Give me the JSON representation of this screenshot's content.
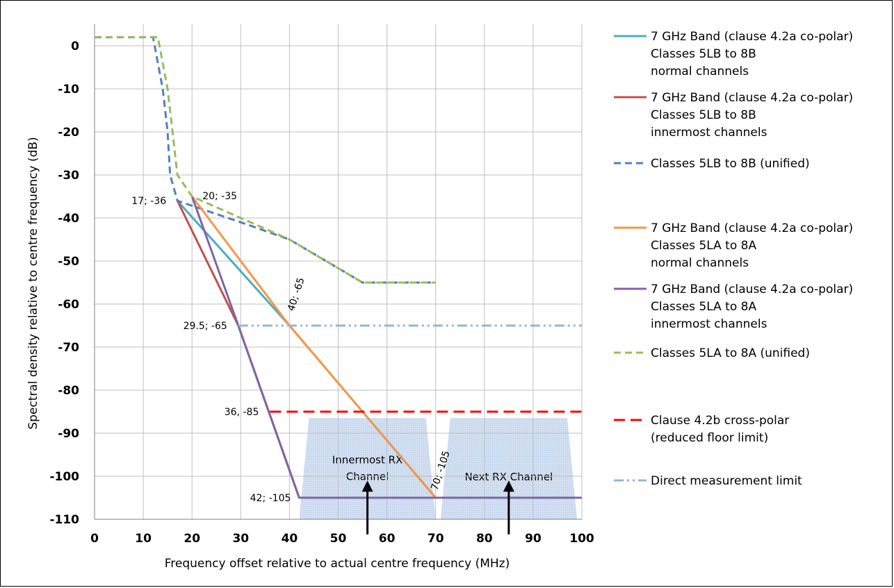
{
  "chart_data": {
    "type": "line",
    "xlabel": "Frequency offset relative to actual centre frequency (MHz)",
    "ylabel": "Spectral density relative to centre frequency (dB)",
    "xlim": [
      0,
      100
    ],
    "ylim": [
      -110,
      5
    ],
    "xticks": [
      0,
      10,
      20,
      30,
      40,
      50,
      60,
      70,
      80,
      90,
      100
    ],
    "yticks": [
      0,
      -10,
      -20,
      -30,
      -40,
      -50,
      -60,
      -70,
      -80,
      -90,
      -100,
      -110
    ],
    "grid": true,
    "legend_position": "right",
    "series": [
      {
        "name": "7 GHz Band (clause 4.2a co-polar) Classes 5LB to 8B normal channels",
        "legend_lines": [
          "7 GHz Band (clause 4.2a co-polar)",
          "Classes 5LB to 8B",
          "normal channels"
        ],
        "color": "#4BACC6",
        "style": "solid",
        "points": [
          [
            17,
            -36
          ],
          [
            40,
            -65
          ],
          [
            70,
            -105
          ]
        ]
      },
      {
        "name": "7 GHz Band (clause 4.2a co-polar) Classes 5LB to 8B innermost channels",
        "legend_lines": [
          "7 GHz Band (clause 4.2a co-polar)",
          "Classes 5LB to 8B",
          "innermost channels"
        ],
        "color": "#C0504D",
        "style": "solid",
        "points": [
          [
            17,
            -36
          ],
          [
            29.5,
            -65
          ],
          [
            42,
            -105
          ]
        ]
      },
      {
        "name": "Classes 5LB to 8B (unified)",
        "legend_lines": [
          "Classes 5LB to 8B (unified)"
        ],
        "color": "#4F81BD",
        "style": "dash",
        "points": [
          [
            0,
            2
          ],
          [
            12,
            2
          ],
          [
            14,
            -10
          ],
          [
            15,
            -20
          ],
          [
            15.5,
            -30
          ],
          [
            17,
            -36
          ],
          [
            30,
            -41
          ],
          [
            40,
            -45
          ],
          [
            55,
            -55
          ],
          [
            70,
            -55
          ]
        ]
      },
      {
        "name": "7 GHz Band (clause 4.2a co-polar) Classes 5LA to 8A normal channels",
        "legend_lines": [
          "7 GHz Band (clause 4.2a co-polar)",
          "Classes 5LA to 8A",
          "normal channels"
        ],
        "color": "#F79646",
        "style": "solid",
        "points": [
          [
            20,
            -35
          ],
          [
            40,
            -65
          ],
          [
            70,
            -105
          ]
        ]
      },
      {
        "name": "7 GHz Band (clause 4.2a co-polar) Classes 5LA to 8A innermost channels",
        "legend_lines": [
          "7 GHz Band (clause 4.2a co-polar)",
          "Classes 5LA to 8A",
          "innermost channels"
        ],
        "color": "#8064A2",
        "style": "solid",
        "points": [
          [
            20,
            -35
          ],
          [
            29.5,
            -65
          ],
          [
            42,
            -105
          ],
          [
            100,
            -105
          ]
        ]
      },
      {
        "name": "Classes 5LA to 8A (unified)",
        "legend_lines": [
          "Classes 5LA to 8A (unified)"
        ],
        "color": "#9BBB59",
        "style": "dash",
        "points": [
          [
            0,
            2
          ],
          [
            13,
            2
          ],
          [
            15,
            -10
          ],
          [
            16,
            -20
          ],
          [
            17,
            -30
          ],
          [
            20,
            -35
          ],
          [
            30,
            -40
          ],
          [
            40,
            -45
          ],
          [
            55,
            -55
          ],
          [
            70,
            -55
          ]
        ]
      },
      {
        "name": "Clause 4.2b cross-polar (reduced floor limit)",
        "legend_lines": [
          "Clause 4.2b cross-polar",
          "(reduced floor limit)"
        ],
        "color": "#FF0000",
        "style": "longdash",
        "points": [
          [
            36,
            -85
          ],
          [
            100,
            -85
          ]
        ]
      },
      {
        "name": "Direct measurement limit",
        "legend_lines": [
          "Direct measurement limit"
        ],
        "color": "#95B3D7",
        "style": "dashdotdot",
        "points": [
          [
            29.5,
            -65
          ],
          [
            100,
            -65
          ]
        ]
      }
    ],
    "point_labels": [
      {
        "text": "17; -36",
        "x": 17,
        "y": -36
      },
      {
        "text": "20; -35",
        "x": 20,
        "y": -35
      },
      {
        "text": "40; -65",
        "x": 40,
        "y": -65
      },
      {
        "text": "29.5; -65",
        "x": 29.5,
        "y": -65
      },
      {
        "text": "36, -85",
        "x": 36,
        "y": -85
      },
      {
        "text": "42; -105",
        "x": 42,
        "y": -105
      },
      {
        "text": "70; -105",
        "x": 70,
        "y": -105
      }
    ],
    "channel_bands": [
      {
        "label_lines": [
          "Innermost RX",
          "Channel"
        ],
        "x_bottom": [
          42,
          70
        ],
        "x_top": [
          44,
          68
        ],
        "y_top": -86.5
      },
      {
        "label_lines": [
          "Next RX Channel"
        ],
        "x_bottom": [
          71,
          99
        ],
        "x_top": [
          73,
          97
        ],
        "y_top": -86.5
      }
    ],
    "arrows": [
      {
        "x": 56,
        "y_from": -113.5,
        "y_to": -101
      },
      {
        "x": 85,
        "y_from": -113.5,
        "y_to": -101
      }
    ]
  }
}
